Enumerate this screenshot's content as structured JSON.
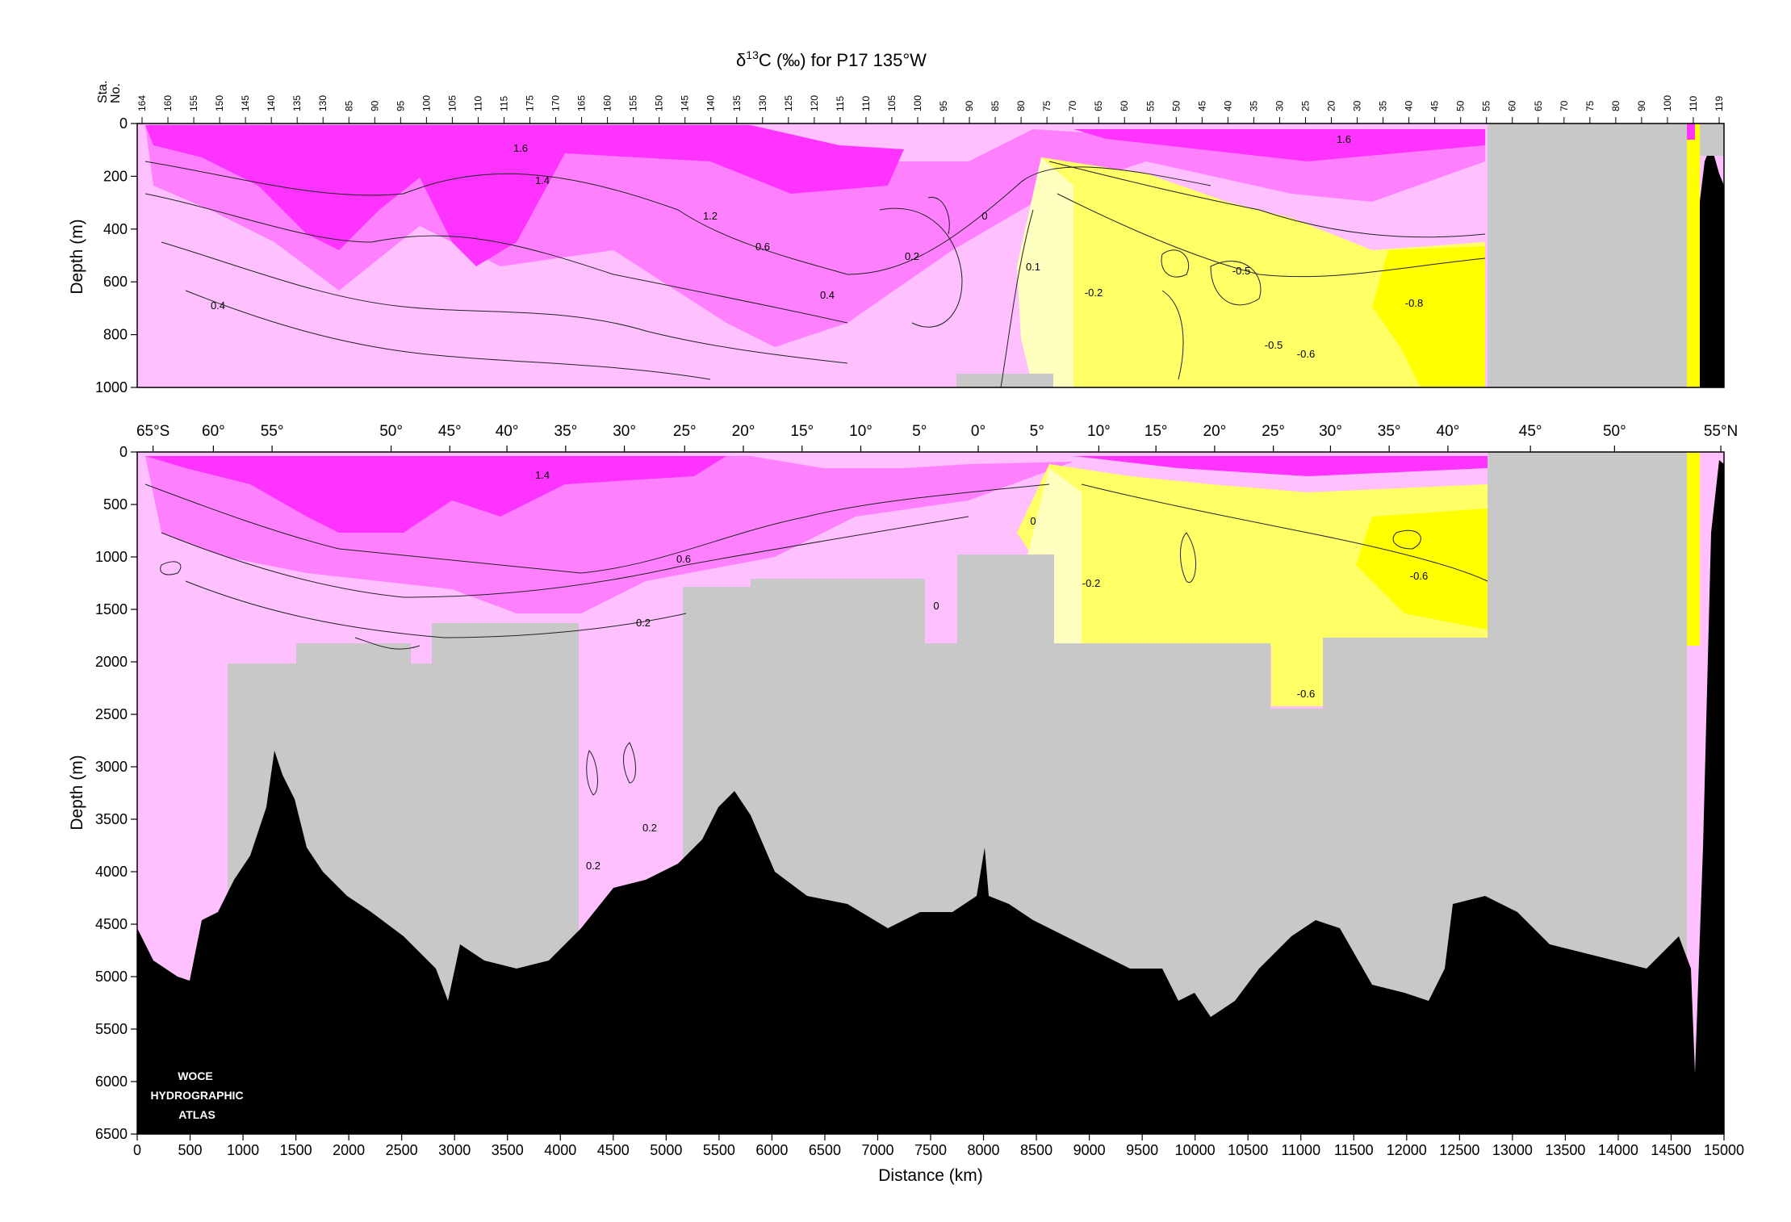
{
  "chart_data": [
    {
      "type": "heatmap",
      "panel": "upper",
      "title_parts": [
        "δ",
        "13",
        "C (‰) for P17 135°W"
      ],
      "ylabel": "Depth (m)",
      "ylim": [
        1000,
        0
      ],
      "xlim": [
        0,
        15000
      ],
      "station_axis_label": [
        "Sta.",
        "No."
      ],
      "station_labels": [
        "164",
        "160",
        "155",
        "150",
        "145",
        "140",
        "135",
        "130",
        "85",
        "90",
        "95",
        "100",
        "105",
        "110",
        "115",
        "175",
        "170",
        "165",
        "160",
        "155",
        "150",
        "145",
        "140",
        "135",
        "130",
        "125",
        "120",
        "115",
        "110",
        "105",
        "100",
        "95",
        "90",
        "85",
        "80",
        "75",
        "70",
        "65",
        "60",
        "55",
        "50",
        "45",
        "40",
        "35",
        "30",
        "25",
        "20",
        "30",
        "35",
        "40",
        "45",
        "50",
        "55",
        "60",
        "65",
        "70",
        "75",
        "80",
        "90",
        "100",
        "110",
        "119"
      ],
      "yticks": [
        "0",
        "200",
        "400",
        "600",
        "800",
        "1000"
      ],
      "contour_labels": [
        "1.6",
        "1.4",
        "1.2",
        "0.6",
        "0.4",
        "0.2",
        "0",
        "0.1",
        "0.4",
        "-0.2",
        "-0.5",
        "-0.8",
        "-0.5",
        "-0.6",
        "1.6"
      ],
      "color_scale": {
        "levels": [
          "<0",
          "0–0.2",
          "0.2–0.6",
          "0.6–1.2",
          ">1.4"
        ],
        "colors": [
          "#ffff66",
          "#ffffc0",
          "#ffc0ff",
          "#ff80ff",
          "#ff33ff"
        ]
      }
    },
    {
      "type": "heatmap",
      "panel": "lower",
      "ylabel": "Depth (m)",
      "xlabel": "Distance (km)",
      "ylim": [
        6500,
        0
      ],
      "xlim": [
        0,
        15000
      ],
      "latitude_labels": [
        "65°S",
        "60°",
        "55°",
        "50°",
        "45°",
        "40°",
        "35°",
        "30°",
        "25°",
        "20°",
        "15°",
        "10°",
        "5°",
        "0°",
        "5°",
        "10°",
        "15°",
        "20°",
        "25°",
        "30°",
        "35°",
        "40°",
        "45°",
        "50°",
        "55°N"
      ],
      "yticks": [
        "0",
        "500",
        "1000",
        "1500",
        "2000",
        "2500",
        "3000",
        "3500",
        "4000",
        "4500",
        "5000",
        "5500",
        "6000",
        "6500"
      ],
      "xticks": [
        "0",
        "500",
        "1000",
        "1500",
        "2000",
        "2500",
        "3000",
        "3500",
        "4000",
        "4500",
        "5000",
        "5500",
        "6000",
        "6500",
        "7000",
        "7500",
        "8000",
        "8500",
        "9000",
        "9500",
        "10000",
        "10500",
        "11000",
        "11500",
        "12000",
        "12500",
        "13000",
        "13500",
        "14000",
        "14500",
        "15000"
      ],
      "contour_labels": [
        "1.4",
        "0.6",
        "0.2",
        "0",
        "0",
        "-0.2",
        "-0.6",
        "-0.6",
        "0.2",
        "0.2"
      ]
    }
  ],
  "logo": [
    "WOCE",
    "HYDROGRAPHIC",
    "ATLAS"
  ]
}
